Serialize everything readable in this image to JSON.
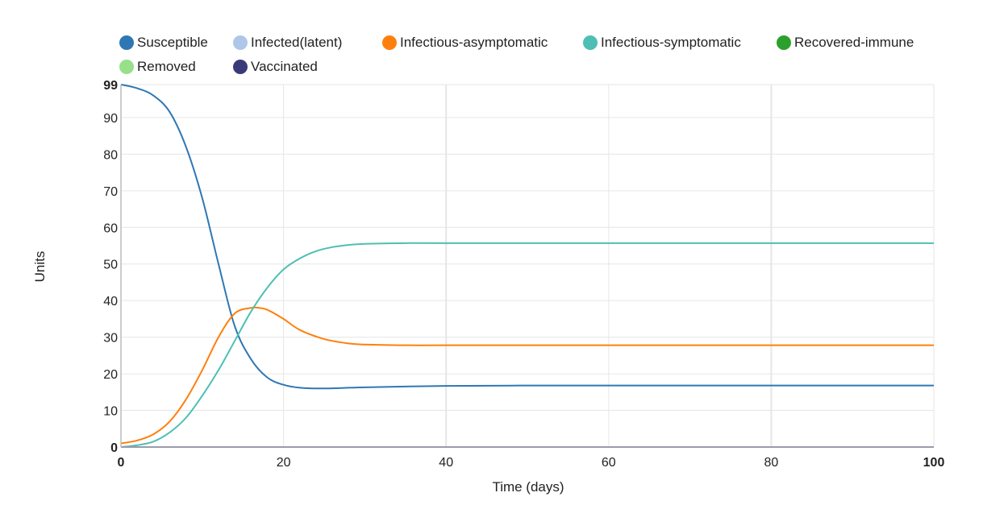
{
  "chart_data": {
    "type": "line",
    "xlabel": "Time (days)",
    "ylabel": "Units",
    "xlim": [
      0,
      100
    ],
    "ylim": [
      0,
      99
    ],
    "x_ticks": [
      "0",
      "20",
      "40",
      "60",
      "80",
      "100"
    ],
    "y_ticks": [
      "0",
      "10",
      "20",
      "30",
      "40",
      "50",
      "60",
      "70",
      "80",
      "90",
      "99"
    ],
    "legend_position": "top",
    "grid": true,
    "series": [
      {
        "name": "Susceptible",
        "color": "#2f77b4",
        "x": [
          0,
          2,
          4,
          6,
          8,
          10,
          12,
          14,
          16,
          18,
          20,
          22,
          25,
          30,
          40,
          50,
          60,
          80,
          100
        ],
        "y": [
          99,
          98,
          96,
          91.5,
          82,
          68,
          50,
          33,
          24,
          19,
          17,
          16.2,
          16,
          16.3,
          16.7,
          16.8,
          16.8,
          16.8,
          16.8
        ]
      },
      {
        "name": "Infected(latent)",
        "color": "#aec7e8",
        "x": [
          0,
          100
        ],
        "y": [
          0,
          0
        ]
      },
      {
        "name": "Infectious-asymptomatic",
        "color": "#ff7f0e",
        "x": [
          0,
          2,
          4,
          6,
          8,
          10,
          12,
          14,
          16,
          17,
          18,
          20,
          22,
          25,
          28,
          30,
          35,
          40,
          50,
          100
        ],
        "y": [
          1,
          1.8,
          3.5,
          7,
          13,
          21,
          30,
          36.5,
          38,
          38,
          37.5,
          35,
          32,
          29.5,
          28.3,
          28,
          27.8,
          27.8,
          27.8,
          27.8
        ]
      },
      {
        "name": "Infectious-symptomatic",
        "color": "#4dbfb4",
        "x": [
          0,
          2,
          4,
          6,
          8,
          10,
          12,
          14,
          16,
          18,
          20,
          22,
          24,
          26,
          28,
          30,
          35,
          40,
          50,
          100
        ],
        "y": [
          0,
          0.5,
          1.5,
          4,
          8,
          14,
          21,
          29,
          37,
          43.5,
          48.5,
          51.5,
          53.5,
          54.6,
          55.2,
          55.5,
          55.7,
          55.7,
          55.7,
          55.7
        ]
      },
      {
        "name": "Recovered-immune",
        "color": "#2ca02c",
        "x": [
          0,
          100
        ],
        "y": [
          0,
          0
        ]
      },
      {
        "name": "Removed",
        "color": "#98df8a",
        "x": [
          0,
          100
        ],
        "y": [
          0,
          0
        ]
      },
      {
        "name": "Vaccinated",
        "color": "#393b79",
        "x": [
          0,
          100
        ],
        "y": [
          0,
          0
        ]
      }
    ]
  }
}
